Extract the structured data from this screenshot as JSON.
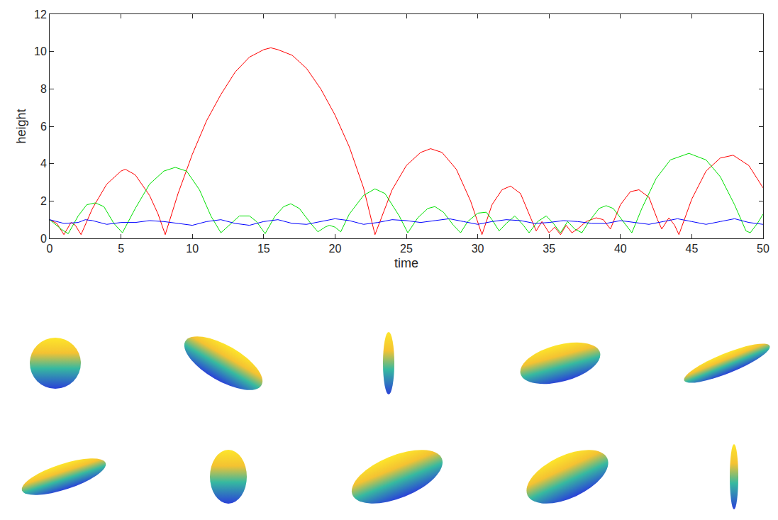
{
  "chart_data": {
    "type": "line",
    "xlabel": "time",
    "ylabel": "height",
    "xlim": [
      0,
      50
    ],
    "ylim": [
      0,
      12
    ],
    "xticks": [
      0,
      5,
      10,
      15,
      20,
      25,
      30,
      35,
      40,
      45,
      50
    ],
    "yticks": [
      0,
      2,
      4,
      6,
      8,
      10,
      12
    ],
    "grid": false,
    "series": [
      {
        "color": "#ff0000",
        "x": [
          0,
          0.5,
          1.0,
          1.5,
          1.8,
          2.2,
          3,
          4,
          5,
          5.3,
          6,
          7,
          7.6,
          8.1,
          9,
          10,
          11,
          12,
          13,
          14,
          15,
          15.5,
          16,
          17,
          18,
          19,
          20,
          21,
          22,
          22.8,
          24,
          25,
          26,
          26.7,
          27.5,
          28.5,
          29.5,
          30.3,
          31,
          31.7,
          32.3,
          33,
          33.6,
          34.1,
          34.5,
          35,
          35.4,
          35.8,
          36.2,
          36.6,
          37.0,
          37.6,
          38.3,
          38.8,
          39.3,
          40,
          40.7,
          41.3,
          42,
          42.6,
          42.9,
          43.4,
          43.8,
          44.1,
          45,
          46,
          47,
          47.9,
          49,
          50
        ],
        "values": [
          1.0,
          0.8,
          0.2,
          0.85,
          0.7,
          0.2,
          1.6,
          2.9,
          3.6,
          3.7,
          3.4,
          2.3,
          1.3,
          0.2,
          2.4,
          4.5,
          6.3,
          7.7,
          8.9,
          9.7,
          10.1,
          10.2,
          10.1,
          9.8,
          9.1,
          8.0,
          6.6,
          4.9,
          2.7,
          0.2,
          2.6,
          3.9,
          4.6,
          4.8,
          4.6,
          3.7,
          2.0,
          0.2,
          1.8,
          2.6,
          2.8,
          2.4,
          1.3,
          0.4,
          0.9,
          0.3,
          0.6,
          0.2,
          0.7,
          0.3,
          0.5,
          0.9,
          1.1,
          1.0,
          0.5,
          1.8,
          2.5,
          2.6,
          2.2,
          1.0,
          0.5,
          1.1,
          0.7,
          0.2,
          2.1,
          3.6,
          4.3,
          4.45,
          3.9,
          2.7
        ]
      },
      {
        "color": "#00e000",
        "x": [
          0,
          0.8,
          1.3,
          2,
          2.6,
          3.2,
          3.8,
          4.5,
          5.1,
          6,
          7,
          8,
          8.8,
          9.6,
          10.5,
          11.3,
          12.0,
          12.7,
          13.3,
          14,
          14.5,
          15.1,
          15.8,
          16.4,
          16.9,
          17.5,
          18.3,
          18.8,
          19.3,
          19.6,
          20,
          20.4,
          21,
          22,
          22.8,
          23.5,
          24.5,
          25.1,
          25.8,
          26.5,
          27,
          27.6,
          28.3,
          28.8,
          29.3,
          30,
          30.6,
          31,
          31.5,
          32,
          32.6,
          33.2,
          33.6,
          34.2,
          34.8,
          35.3,
          35.8,
          36.3,
          36.8,
          37.3,
          37.8,
          38.5,
          39,
          39.5,
          40.2,
          40.8,
          41.5,
          42.5,
          43.5,
          44.8,
          46,
          47,
          48,
          48.8,
          49.1,
          49.6,
          50
        ],
        "values": [
          1.0,
          0.5,
          0.25,
          1.2,
          1.8,
          1.9,
          1.7,
          0.8,
          0.3,
          1.6,
          2.9,
          3.6,
          3.8,
          3.6,
          2.6,
          1.2,
          0.3,
          0.8,
          1.2,
          1.2,
          0.9,
          0.25,
          1.2,
          1.7,
          1.85,
          1.6,
          0.8,
          0.35,
          0.6,
          0.7,
          0.6,
          0.35,
          1.3,
          2.3,
          2.65,
          2.4,
          1.2,
          0.3,
          1.1,
          1.6,
          1.7,
          1.4,
          0.7,
          0.3,
          0.9,
          1.35,
          1.4,
          1.0,
          0.4,
          0.8,
          1.2,
          0.7,
          0.3,
          0.9,
          1.2,
          0.8,
          0.3,
          0.9,
          0.5,
          0.3,
          0.9,
          1.6,
          1.75,
          1.6,
          0.9,
          0.3,
          1.6,
          3.2,
          4.2,
          4.55,
          4.2,
          3.3,
          1.8,
          0.4,
          0.3,
          0.8,
          1.3
        ]
      },
      {
        "color": "#0000ff",
        "x": [
          0,
          1,
          2,
          2.5,
          3,
          4,
          5,
          6,
          7,
          8,
          9,
          10,
          11,
          12,
          13,
          14,
          15,
          16,
          17,
          18,
          19,
          20,
          21,
          22,
          23,
          24,
          25,
          26,
          27,
          28,
          29,
          30,
          31,
          32,
          33,
          34,
          35,
          36,
          37,
          38,
          39,
          40,
          41,
          42,
          43,
          44,
          45,
          46,
          47,
          48,
          49,
          50
        ],
        "values": [
          1.0,
          0.8,
          0.85,
          1.0,
          0.95,
          0.75,
          0.85,
          0.85,
          0.95,
          0.9,
          0.8,
          0.7,
          0.9,
          1.0,
          0.8,
          0.7,
          0.9,
          1.0,
          0.8,
          0.75,
          0.9,
          1.05,
          0.95,
          0.75,
          0.85,
          1.0,
          0.95,
          0.85,
          0.95,
          1.05,
          0.9,
          0.75,
          0.9,
          1.0,
          0.95,
          0.8,
          0.85,
          0.95,
          0.9,
          0.8,
          0.8,
          0.95,
          0.85,
          0.75,
          0.9,
          1.05,
          0.9,
          0.75,
          0.9,
          1.05,
          0.85,
          0.75
        ]
      }
    ]
  }
}
